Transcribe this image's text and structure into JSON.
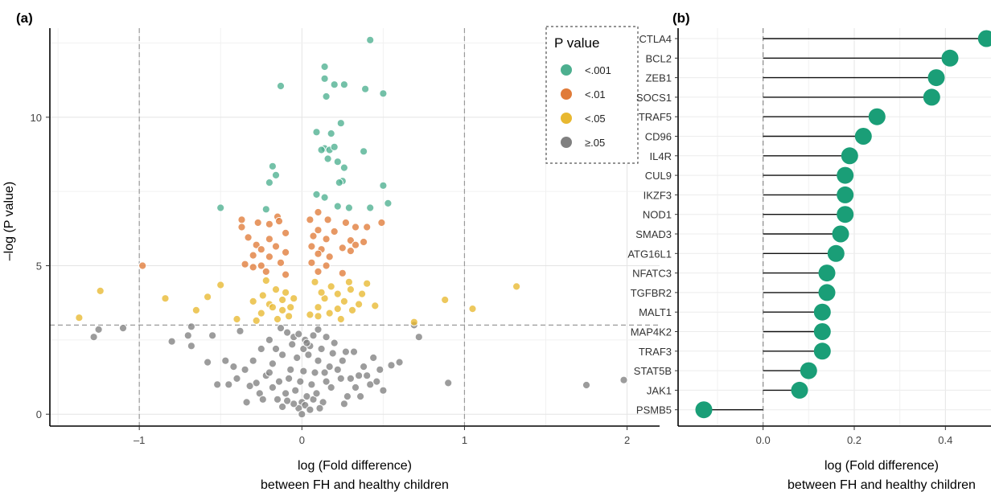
{
  "chart_data": [
    {
      "type": "scatter",
      "panel_label": "(a)",
      "xlabel_line1": "log (Fold difference)",
      "xlabel_line2": "between FH and healthy children",
      "ylabel": "–log (P value)",
      "xlim": [
        -1.55,
        2.2
      ],
      "ylim": [
        -0.4,
        13.0
      ],
      "xticks": [
        -1,
        0,
        1,
        2
      ],
      "xtick_labels": [
        "–1",
        "0",
        "1",
        "2"
      ],
      "yticks": [
        0,
        5,
        10
      ],
      "ytick_labels": [
        "0",
        "5",
        "10"
      ],
      "grid": true,
      "threshold_lines": {
        "x": [
          -1,
          1
        ],
        "y": [
          3.0
        ]
      },
      "legend": {
        "title": "P value",
        "placement": "top-right",
        "entries": [
          {
            "label": "<.001",
            "color": "#4daf8f"
          },
          {
            "label": "<.01",
            "color": "#e07b39"
          },
          {
            "label": "<.05",
            "color": "#e8b830"
          },
          {
            "label": "≥.05",
            "color": "#808080"
          }
        ]
      },
      "series": [
        {
          "label": "<.001",
          "color": "#4daf8f",
          "points": [
            [
              0.42,
              12.6
            ],
            [
              0.14,
              11.7
            ],
            [
              0.14,
              11.3
            ],
            [
              0.2,
              11.1
            ],
            [
              0.26,
              11.1
            ],
            [
              -0.13,
              11.05
            ],
            [
              0.39,
              10.95
            ],
            [
              0.5,
              10.8
            ],
            [
              0.15,
              10.7
            ],
            [
              0.09,
              9.5
            ],
            [
              0.24,
              9.8
            ],
            [
              0.18,
              9.45
            ],
            [
              0.14,
              8.95
            ],
            [
              0.17,
              8.9
            ],
            [
              0.12,
              8.9
            ],
            [
              0.2,
              9.0
            ],
            [
              0.38,
              8.85
            ],
            [
              0.16,
              8.6
            ],
            [
              0.22,
              8.5
            ],
            [
              -0.18,
              8.35
            ],
            [
              -0.16,
              8.05
            ],
            [
              0.26,
              8.3
            ],
            [
              0.25,
              7.85
            ],
            [
              0.23,
              7.8
            ],
            [
              -0.2,
              7.8
            ],
            [
              0.5,
              7.7
            ],
            [
              0.09,
              7.4
            ],
            [
              0.53,
              7.1
            ],
            [
              -0.5,
              6.95
            ],
            [
              -0.22,
              6.9
            ],
            [
              0.29,
              6.95
            ],
            [
              0.42,
              6.95
            ],
            [
              0.22,
              7.0
            ],
            [
              0.14,
              7.3
            ]
          ]
        },
        {
          "label": "<.01",
          "color": "#e07b39",
          "points": [
            [
              -0.37,
              6.55
            ],
            [
              -0.37,
              6.3
            ],
            [
              -0.27,
              6.45
            ],
            [
              -0.15,
              6.65
            ],
            [
              -0.14,
              6.5
            ],
            [
              -0.2,
              6.4
            ],
            [
              0.05,
              6.55
            ],
            [
              0.1,
              6.8
            ],
            [
              0.16,
              6.55
            ],
            [
              0.27,
              6.45
            ],
            [
              0.33,
              6.3
            ],
            [
              0.4,
              6.3
            ],
            [
              0.49,
              6.45
            ],
            [
              0.1,
              6.2
            ],
            [
              0.2,
              6.15
            ],
            [
              -0.33,
              5.95
            ],
            [
              -0.2,
              5.9
            ],
            [
              -0.1,
              6.1
            ],
            [
              0.07,
              6.0
            ],
            [
              0.15,
              5.9
            ],
            [
              0.3,
              5.85
            ],
            [
              0.38,
              5.8
            ],
            [
              -0.28,
              5.7
            ],
            [
              -0.25,
              5.55
            ],
            [
              -0.16,
              5.65
            ],
            [
              0.06,
              5.65
            ],
            [
              0.12,
              5.55
            ],
            [
              0.25,
              5.6
            ],
            [
              0.33,
              5.7
            ],
            [
              -0.3,
              5.35
            ],
            [
              -0.2,
              5.3
            ],
            [
              -0.1,
              5.45
            ],
            [
              0.1,
              5.4
            ],
            [
              0.17,
              5.3
            ],
            [
              0.3,
              5.5
            ],
            [
              -0.35,
              5.05
            ],
            [
              -0.25,
              5.0
            ],
            [
              -0.13,
              5.1
            ],
            [
              0.06,
              5.1
            ],
            [
              0.15,
              5.0
            ],
            [
              -0.98,
              5.0
            ],
            [
              -0.22,
              4.8
            ],
            [
              -0.1,
              4.7
            ],
            [
              0.1,
              4.8
            ],
            [
              0.25,
              4.75
            ],
            [
              -0.3,
              4.95
            ]
          ]
        },
        {
          "label": "<.05",
          "color": "#e8b830",
          "points": [
            [
              1.32,
              4.3
            ],
            [
              -1.24,
              4.15
            ],
            [
              -0.84,
              3.9
            ],
            [
              -0.58,
              3.95
            ],
            [
              -0.5,
              4.35
            ],
            [
              -0.65,
              3.5
            ],
            [
              -1.37,
              3.25
            ],
            [
              0.88,
              3.85
            ],
            [
              1.05,
              3.55
            ],
            [
              0.69,
              3.1
            ],
            [
              0.45,
              3.65
            ],
            [
              0.29,
              4.45
            ],
            [
              0.4,
              4.4
            ],
            [
              0.37,
              4.05
            ],
            [
              0.35,
              3.7
            ],
            [
              0.08,
              4.45
            ],
            [
              0.18,
              4.3
            ],
            [
              0.22,
              4.05
            ],
            [
              0.26,
              3.8
            ],
            [
              0.31,
              3.5
            ],
            [
              0.14,
              3.9
            ],
            [
              0.1,
              3.6
            ],
            [
              0.1,
              3.3
            ],
            [
              0.17,
              3.4
            ],
            [
              0.12,
              4.1
            ],
            [
              0.22,
              3.55
            ],
            [
              -0.22,
              4.5
            ],
            [
              -0.24,
              4.0
            ],
            [
              -0.2,
              3.7
            ],
            [
              -0.25,
              3.4
            ],
            [
              -0.15,
              3.2
            ],
            [
              -0.08,
              3.3
            ],
            [
              -0.12,
              3.5
            ],
            [
              -0.18,
              3.6
            ],
            [
              -0.28,
              3.15
            ],
            [
              -0.1,
              4.1
            ],
            [
              -0.3,
              3.8
            ],
            [
              -0.4,
              3.2
            ],
            [
              -0.05,
              3.9
            ],
            [
              0.05,
              3.35
            ],
            [
              -0.16,
              4.2
            ],
            [
              0.3,
              4.2
            ],
            [
              -0.12,
              3.85
            ],
            [
              0.24,
              3.2
            ],
            [
              -0.07,
              3.6
            ]
          ]
        },
        {
          "label": "≥.05",
          "color": "#808080",
          "points": [
            [
              1.75,
              0.98
            ],
            [
              1.98,
              1.15
            ],
            [
              0.9,
              1.05
            ],
            [
              0.72,
              2.6
            ],
            [
              0.69,
              3.0
            ],
            [
              0.6,
              1.75
            ],
            [
              0.55,
              1.65
            ],
            [
              0.48,
              1.5
            ],
            [
              0.44,
              1.9
            ],
            [
              0.38,
              1.6
            ],
            [
              0.35,
              1.3
            ],
            [
              0.32,
              2.1
            ],
            [
              0.27,
              2.1
            ],
            [
              0.3,
              1.2
            ],
            [
              0.42,
              1.0
            ],
            [
              -0.13,
              2.9
            ],
            [
              -0.09,
              2.75
            ],
            [
              -0.05,
              2.6
            ],
            [
              0.02,
              2.5
            ],
            [
              0.05,
              2.3
            ],
            [
              0.1,
              2.85
            ],
            [
              0.15,
              2.6
            ],
            [
              0.2,
              2.4
            ],
            [
              -0.2,
              2.5
            ],
            [
              -0.25,
              2.2
            ],
            [
              -0.3,
              1.8
            ],
            [
              -0.35,
              1.5
            ],
            [
              -0.4,
              1.2
            ],
            [
              -0.45,
              1.0
            ],
            [
              -0.52,
              1.0
            ],
            [
              -0.38,
              2.8
            ],
            [
              -0.55,
              2.65
            ],
            [
              -0.68,
              2.3
            ],
            [
              -0.7,
              2.65
            ],
            [
              -0.68,
              2.95
            ],
            [
              -0.8,
              2.45
            ],
            [
              -0.58,
              1.75
            ],
            [
              -1.1,
              2.9
            ],
            [
              -1.25,
              2.85
            ],
            [
              -1.28,
              2.6
            ],
            [
              -0.28,
              1.05
            ],
            [
              -0.22,
              1.3
            ],
            [
              -0.18,
              1.7
            ],
            [
              -0.12,
              2.0
            ],
            [
              -0.08,
              1.2
            ],
            [
              -0.04,
              0.8
            ],
            [
              0.0,
              0.4
            ],
            [
              0.02,
              0.3
            ],
            [
              -0.02,
              0.2
            ],
            [
              0.03,
              0.6
            ],
            [
              0.06,
              1.0
            ],
            [
              0.08,
              1.4
            ],
            [
              0.1,
              1.8
            ],
            [
              0.12,
              2.2
            ],
            [
              0.15,
              1.1
            ],
            [
              0.18,
              0.9
            ],
            [
              0.22,
              1.5
            ],
            [
              0.25,
              1.8
            ],
            [
              -0.15,
              0.5
            ],
            [
              -0.1,
              0.7
            ],
            [
              -0.05,
              0.35
            ],
            [
              0.0,
              0.0
            ],
            [
              0.05,
              0.15
            ],
            [
              0.07,
              0.5
            ],
            [
              -0.07,
              1.5
            ],
            [
              -0.03,
              1.9
            ],
            [
              0.01,
              2.2
            ],
            [
              0.04,
              2.0
            ],
            [
              0.09,
              0.7
            ],
            [
              0.13,
              0.4
            ],
            [
              -0.12,
              0.25
            ],
            [
              -0.18,
              0.9
            ],
            [
              -0.26,
              0.7
            ],
            [
              -0.32,
              0.95
            ],
            [
              -0.42,
              1.6
            ],
            [
              -0.47,
              1.8
            ],
            [
              0.28,
              0.6
            ],
            [
              0.33,
              0.9
            ],
            [
              0.4,
              1.3
            ],
            [
              0.46,
              1.1
            ],
            [
              -0.02,
              2.7
            ],
            [
              0.03,
              2.4
            ],
            [
              0.07,
              2.65
            ],
            [
              -0.06,
              2.35
            ],
            [
              -0.16,
              2.2
            ],
            [
              -0.2,
              1.4
            ],
            [
              0.17,
              1.6
            ],
            [
              0.19,
              2.05
            ],
            [
              0.24,
              1.2
            ],
            [
              0.14,
              1.4
            ],
            [
              -0.09,
              0.45
            ],
            [
              -0.01,
              1.1
            ],
            [
              0.01,
              1.45
            ],
            [
              -0.14,
              1.1
            ],
            [
              0.11,
              0.2
            ],
            [
              -0.24,
              0.5
            ],
            [
              0.26,
              0.35
            ],
            [
              0.36,
              0.6
            ],
            [
              -0.34,
              0.4
            ],
            [
              0.5,
              0.8
            ]
          ]
        }
      ]
    },
    {
      "type": "lollipop",
      "panel_label": "(b)",
      "xlabel_line1": "log (Fold difference)",
      "xlabel_line2": "between FH and healthy children",
      "xlim": [
        -0.16,
        0.5
      ],
      "xticks": [
        0.0,
        0.2,
        0.4
      ],
      "xtick_labels": [
        "0.0",
        "0.2",
        "0.4"
      ],
      "grid": true,
      "color": "#1a9e77",
      "categories": [
        "CTLA4",
        "BCL2",
        "ZEB1",
        "SOCS1",
        "TRAF5",
        "CD96",
        "IL4R",
        "CUL9",
        "IKZF3",
        "NOD1",
        "SMAD3",
        "ATG16L1",
        "NFATC3",
        "TGFBR2",
        "MALT1",
        "MAP4K2",
        "TRAF3",
        "STAT5B",
        "JAK1",
        "PSMB5"
      ],
      "values": [
        0.49,
        0.41,
        0.38,
        0.37,
        0.25,
        0.22,
        0.19,
        0.18,
        0.18,
        0.18,
        0.17,
        0.16,
        0.14,
        0.14,
        0.13,
        0.13,
        0.13,
        0.1,
        0.08,
        -0.13
      ]
    }
  ]
}
